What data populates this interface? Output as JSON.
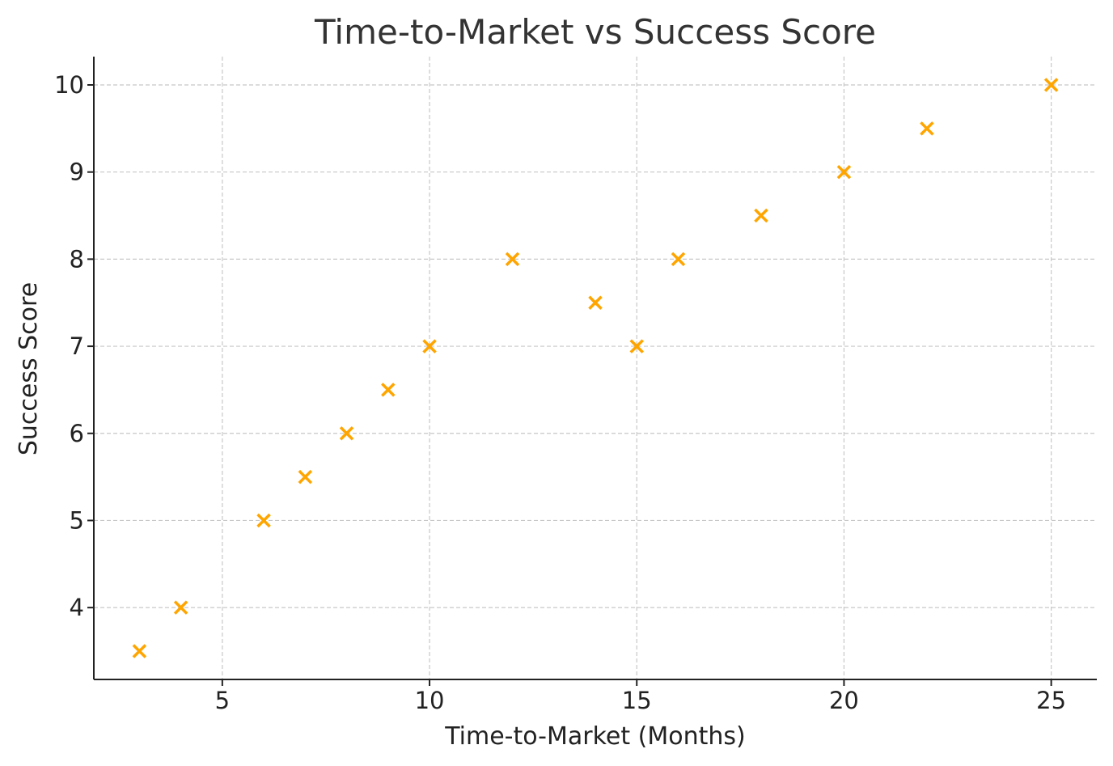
{
  "chart_data": {
    "type": "scatter",
    "title": "Time-to-Market vs Success Score",
    "xlabel": "Time-to-Market (Months)",
    "ylabel": "Success Score",
    "xlim": [
      1.9,
      26.1
    ],
    "ylim": [
      3.175,
      10.325
    ],
    "xticks": [
      5,
      10,
      15,
      20,
      25
    ],
    "yticks": [
      4,
      5,
      6,
      7,
      8,
      9,
      10
    ],
    "grid": true,
    "marker": "x",
    "series": [
      {
        "color": "#FFA500",
        "points": [
          {
            "x": 3,
            "y": 3.5
          },
          {
            "x": 4,
            "y": 4.0
          },
          {
            "x": 6,
            "y": 5.0
          },
          {
            "x": 7,
            "y": 5.5
          },
          {
            "x": 8,
            "y": 6.0
          },
          {
            "x": 9,
            "y": 6.5
          },
          {
            "x": 10,
            "y": 7.0
          },
          {
            "x": 12,
            "y": 8.0
          },
          {
            "x": 14,
            "y": 7.5
          },
          {
            "x": 15,
            "y": 7.0
          },
          {
            "x": 16,
            "y": 8.0
          },
          {
            "x": 18,
            "y": 8.5
          },
          {
            "x": 20,
            "y": 9.0
          },
          {
            "x": 22,
            "y": 9.5
          },
          {
            "x": 25,
            "y": 10.0
          }
        ]
      }
    ]
  }
}
